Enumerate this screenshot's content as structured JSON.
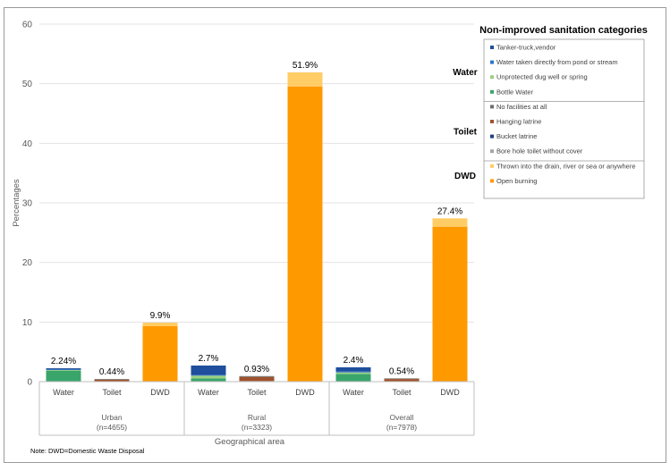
{
  "chart_data": {
    "type": "bar",
    "stacked": true,
    "xlabel": "Geographical area",
    "ylabel": "Percentages",
    "ylim": [
      0,
      60
    ],
    "yticks": [
      0,
      10,
      20,
      30,
      40,
      50,
      60
    ],
    "note": "Note: DWD=Domestic Waste Disposal",
    "groups": [
      {
        "name": "Urban",
        "n": "(n=4655)",
        "bars": [
          {
            "label": "Water",
            "total_label": "2.24%",
            "segments": [
              {
                "category": "Bottle Water",
                "value": 1.85
              },
              {
                "category": "Unprotected dug well or spring",
                "value": 0.1
              },
              {
                "category": "Water taken directly from pond or stream",
                "value": 0.09
              },
              {
                "category": "Tanker-truck,vendor",
                "value": 0.2
              }
            ]
          },
          {
            "label": "Toilet",
            "total_label": "0.44%",
            "segments": [
              {
                "category": "Bore hole toilet without cover",
                "value": 0.02
              },
              {
                "category": "Bucket latrine",
                "value": 0.02
              },
              {
                "category": "Hanging latrine",
                "value": 0.3
              },
              {
                "category": "No facilities at all",
                "value": 0.1
              }
            ]
          },
          {
            "label": "DWD",
            "total_label": "9.9%",
            "segments": [
              {
                "category": "Open burning",
                "value": 9.3
              },
              {
                "category": "Thrown into the drain, river or sea or anywhere",
                "value": 0.6
              }
            ]
          }
        ]
      },
      {
        "name": "Rural",
        "n": "(n=3323)",
        "bars": [
          {
            "label": "Water",
            "total_label": "2.7%",
            "segments": [
              {
                "category": "Bottle Water",
                "value": 0.55
              },
              {
                "category": "Unprotected dug well or spring",
                "value": 0.45
              },
              {
                "category": "Water taken directly from pond or stream",
                "value": 0.1
              },
              {
                "category": "Tanker-truck,vendor",
                "value": 1.6
              }
            ]
          },
          {
            "label": "Toilet",
            "total_label": "0.93%",
            "segments": [
              {
                "category": "Bore hole toilet without cover",
                "value": 0.05
              },
              {
                "category": "Bucket latrine",
                "value": 0.05
              },
              {
                "category": "Hanging latrine",
                "value": 0.68
              },
              {
                "category": "No facilities at all",
                "value": 0.15
              }
            ]
          },
          {
            "label": "DWD",
            "total_label": "51.9%",
            "segments": [
              {
                "category": "Open burning",
                "value": 49.5
              },
              {
                "category": "Thrown into the drain, river or sea or anywhere",
                "value": 2.4
              }
            ]
          }
        ]
      },
      {
        "name": "Overall",
        "n": "(n=7978)",
        "bars": [
          {
            "label": "Water",
            "total_label": "2.4%",
            "segments": [
              {
                "category": "Bottle Water",
                "value": 1.3
              },
              {
                "category": "Unprotected dug well or spring",
                "value": 0.25
              },
              {
                "category": "Water taken directly from pond or stream",
                "value": 0.15
              },
              {
                "category": "Tanker-truck,vendor",
                "value": 0.7
              }
            ]
          },
          {
            "label": "Toilet",
            "total_label": "0.54%",
            "segments": [
              {
                "category": "Bore hole toilet without cover",
                "value": 0.02
              },
              {
                "category": "Bucket latrine",
                "value": 0.02
              },
              {
                "category": "Hanging latrine",
                "value": 0.4
              },
              {
                "category": "No facilities at all",
                "value": 0.1
              }
            ]
          },
          {
            "label": "DWD",
            "total_label": "27.4%",
            "segments": [
              {
                "category": "Open burning",
                "value": 26.0
              },
              {
                "category": "Thrown into the drain, river or sea or anywhere",
                "value": 1.4
              }
            ]
          }
        ]
      }
    ],
    "legend": {
      "title": "Non-improved sanitation categories",
      "groups": [
        {
          "name": "Water",
          "items": [
            {
              "label": "Tanker-truck,vendor",
              "color": "#1f4e9c"
            },
            {
              "label": "Water taken directly from pond or stream",
              "color": "#2e75d0"
            },
            {
              "label": "Unprotected dug well or spring",
              "color": "#9bd17f"
            },
            {
              "label": "Bottle Water",
              "color": "#3aa56b"
            }
          ]
        },
        {
          "name": "Toilet",
          "items": [
            {
              "label": "No facilities at all",
              "color": "#6e6e6e"
            },
            {
              "label": "Hanging latrine",
              "color": "#a0522d"
            },
            {
              "label": "Bucket latrine",
              "color": "#1f3f7f"
            },
            {
              "label": "Bore hole toilet without cover",
              "color": "#a6a6a6"
            }
          ]
        },
        {
          "name": "DWD",
          "items": [
            {
              "label": "Thrown into the drain, river or sea or anywhere",
              "color": "#ffcc66"
            },
            {
              "label": "Open burning",
              "color": "#ff9900"
            }
          ]
        }
      ]
    }
  }
}
